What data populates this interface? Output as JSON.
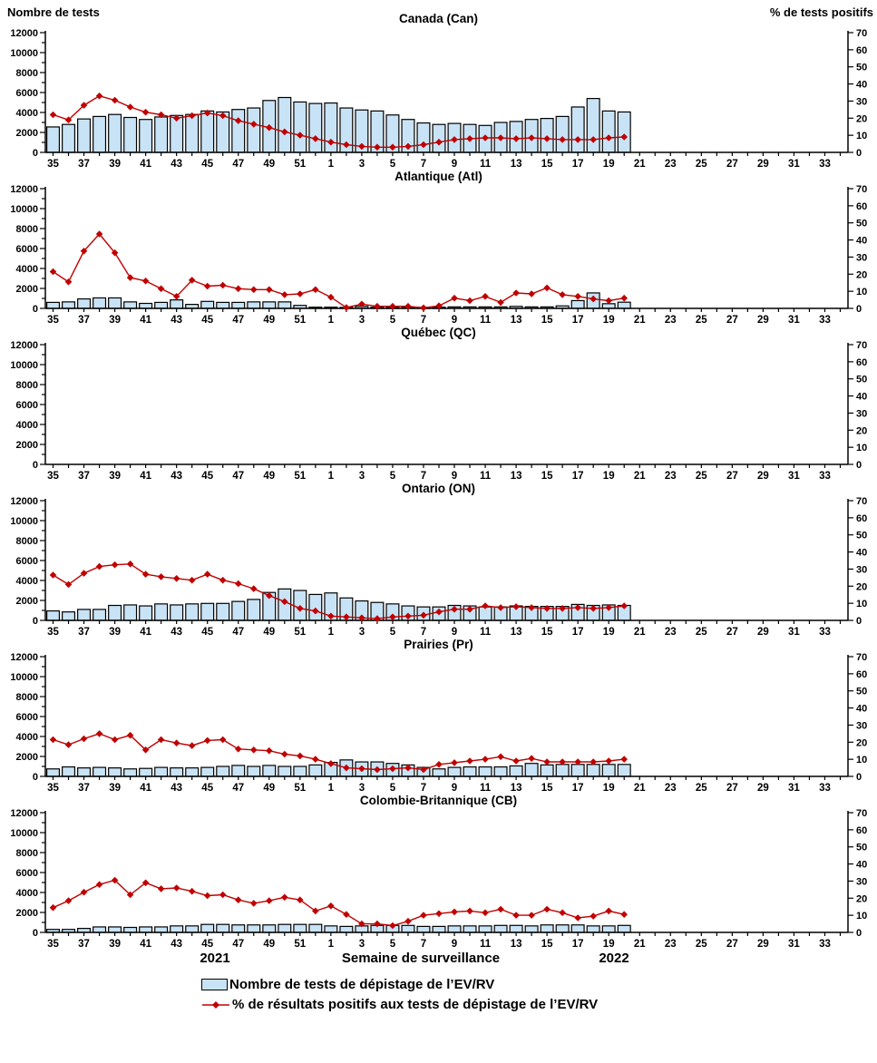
{
  "legend": {
    "bar_label": "Nombre de tests de dépistage de l’EV/RV",
    "line_label": "% de résultats positifs aux tests de dépistage de l’EV/RV"
  },
  "chart_data": {
    "type": "combo-bar-line-small-multiples",
    "x_title": "Semaine de surveillance",
    "year_left": "2021",
    "year_right": "2022",
    "categories": [
      35,
      36,
      37,
      38,
      39,
      40,
      41,
      42,
      43,
      44,
      45,
      46,
      47,
      48,
      49,
      50,
      51,
      52,
      1,
      2,
      3,
      4,
      5,
      6,
      7,
      8,
      9,
      10,
      11,
      12,
      13,
      14,
      15,
      16,
      17,
      18,
      19,
      20,
      21,
      22,
      23,
      24,
      25,
      26,
      27,
      28,
      29,
      30,
      31,
      32,
      33,
      34
    ],
    "x_labels_shown": [
      35,
      37,
      39,
      41,
      43,
      45,
      47,
      49,
      51,
      1,
      3,
      5,
      7,
      9,
      11,
      13,
      15,
      17,
      19,
      21,
      23,
      25,
      27,
      29,
      31,
      33
    ],
    "left_axis": {
      "title": "Nombre de tests",
      "min": 0,
      "max": 12000,
      "major_step": 2000,
      "minor_step": 1000
    },
    "right_axis": {
      "title": "% de tests positifs",
      "min": 0,
      "max": 70,
      "major_step": 10
    },
    "colors": {
      "bar_fill": "#C9E3F6",
      "bar_stroke": "#000000",
      "line": "#C00000"
    },
    "grid": false,
    "legend_position": "bottom",
    "panels": [
      {
        "title": "Canada (Can)",
        "tests": [
          2550,
          2800,
          3350,
          3600,
          3800,
          3500,
          3300,
          3550,
          3700,
          3800,
          4150,
          4050,
          4300,
          4450,
          5200,
          5500,
          5050,
          4900,
          4950,
          4450,
          4250,
          4150,
          3750,
          3300,
          2950,
          2800,
          2900,
          2800,
          2700,
          3000,
          3100,
          3300,
          3400,
          3600,
          4550,
          5400,
          4150,
          4050
        ],
        "pct_positive": [
          22,
          19,
          27.5,
          33,
          30.5,
          26.5,
          23.5,
          22,
          20,
          21.5,
          23,
          21.5,
          18.5,
          16.5,
          14.5,
          12,
          10,
          8,
          6,
          4.5,
          3.5,
          3,
          3,
          3.5,
          4.5,
          6,
          7.5,
          8,
          8.5,
          8.5,
          8,
          8.5,
          8,
          7.5,
          7.5,
          7.5,
          8.5,
          9
        ]
      },
      {
        "title": "Atlantique (Atl)",
        "tests": [
          600,
          650,
          950,
          1050,
          1050,
          650,
          500,
          600,
          850,
          400,
          700,
          600,
          600,
          650,
          650,
          650,
          300,
          120,
          120,
          100,
          200,
          120,
          100,
          120,
          100,
          120,
          150,
          150,
          150,
          150,
          200,
          150,
          150,
          250,
          780,
          1550,
          470,
          620
        ],
        "pct_positive": [
          21.5,
          15.5,
          33.5,
          43.5,
          32.5,
          18,
          16,
          11.5,
          7,
          16.5,
          13,
          13.5,
          11.5,
          11,
          11,
          8,
          8.5,
          11,
          6.5,
          0.5,
          2.5,
          1.2,
          1.2,
          1.2,
          0.3,
          1.5,
          6,
          4.5,
          7,
          3.5,
          9,
          8.5,
          12,
          8,
          7,
          5.5,
          4.5,
          6
        ]
      },
      {
        "title": "Québec (QC)",
        "tests": [],
        "pct_positive": []
      },
      {
        "title": "Ontario (ON)",
        "tests": [
          950,
          850,
          1100,
          1100,
          1500,
          1550,
          1450,
          1650,
          1550,
          1650,
          1700,
          1700,
          1900,
          2100,
          2800,
          3150,
          3000,
          2600,
          2750,
          2250,
          1950,
          1800,
          1650,
          1450,
          1350,
          1350,
          1500,
          1450,
          1350,
          1350,
          1450,
          1400,
          1400,
          1400,
          1600,
          1500,
          1550,
          1500
        ],
        "pct_positive": [
          26.5,
          21,
          27.5,
          31.5,
          32.5,
          33,
          27,
          25.5,
          24.5,
          23.5,
          27,
          23.5,
          21.5,
          18.5,
          14.5,
          11,
          7,
          5.5,
          2.5,
          2,
          1.5,
          1,
          2,
          2.5,
          3,
          5,
          6.5,
          6.5,
          8.5,
          7.5,
          8,
          7.5,
          7,
          7,
          7.5,
          7,
          7.5,
          8.5
        ]
      },
      {
        "title": "Prairies (Pr)",
        "tests": [
          750,
          950,
          850,
          900,
          850,
          750,
          800,
          900,
          850,
          850,
          900,
          1000,
          1100,
          1000,
          1100,
          1000,
          1000,
          1150,
          1400,
          1650,
          1450,
          1450,
          1300,
          1150,
          900,
          750,
          900,
          950,
          950,
          950,
          1050,
          1300,
          1150,
          1200,
          1200,
          1200,
          1200,
          1200
        ],
        "pct_positive": [
          21.5,
          18.5,
          22,
          25,
          21.5,
          24,
          15.5,
          21.5,
          19.5,
          18,
          21,
          21.5,
          16,
          15.5,
          15,
          13,
          12,
          10,
          7.5,
          5,
          4.5,
          4,
          4.5,
          5,
          4,
          7,
          8,
          9,
          10,
          11.5,
          9,
          10.5,
          8.5,
          8.5,
          8.5,
          8.5,
          9,
          10
        ]
      },
      {
        "title": "Colombie-Britannique (CB)",
        "tests": [
          300,
          300,
          400,
          550,
          550,
          500,
          550,
          550,
          650,
          650,
          800,
          800,
          750,
          750,
          750,
          800,
          800,
          800,
          650,
          600,
          650,
          700,
          700,
          700,
          600,
          600,
          650,
          650,
          650,
          700,
          700,
          650,
          750,
          750,
          750,
          650,
          650,
          700
        ],
        "pct_positive": [
          14.5,
          18.5,
          23.5,
          28,
          30.5,
          22,
          29,
          25.5,
          26,
          24,
          21.5,
          22,
          19,
          17,
          18.5,
          20.5,
          19,
          12.5,
          15.5,
          10.5,
          5,
          5,
          4,
          6.5,
          10,
          11,
          12,
          12.5,
          11.5,
          13.5,
          10,
          10,
          13.5,
          11.5,
          8.5,
          9.5,
          12.5,
          10.5
        ]
      }
    ]
  }
}
